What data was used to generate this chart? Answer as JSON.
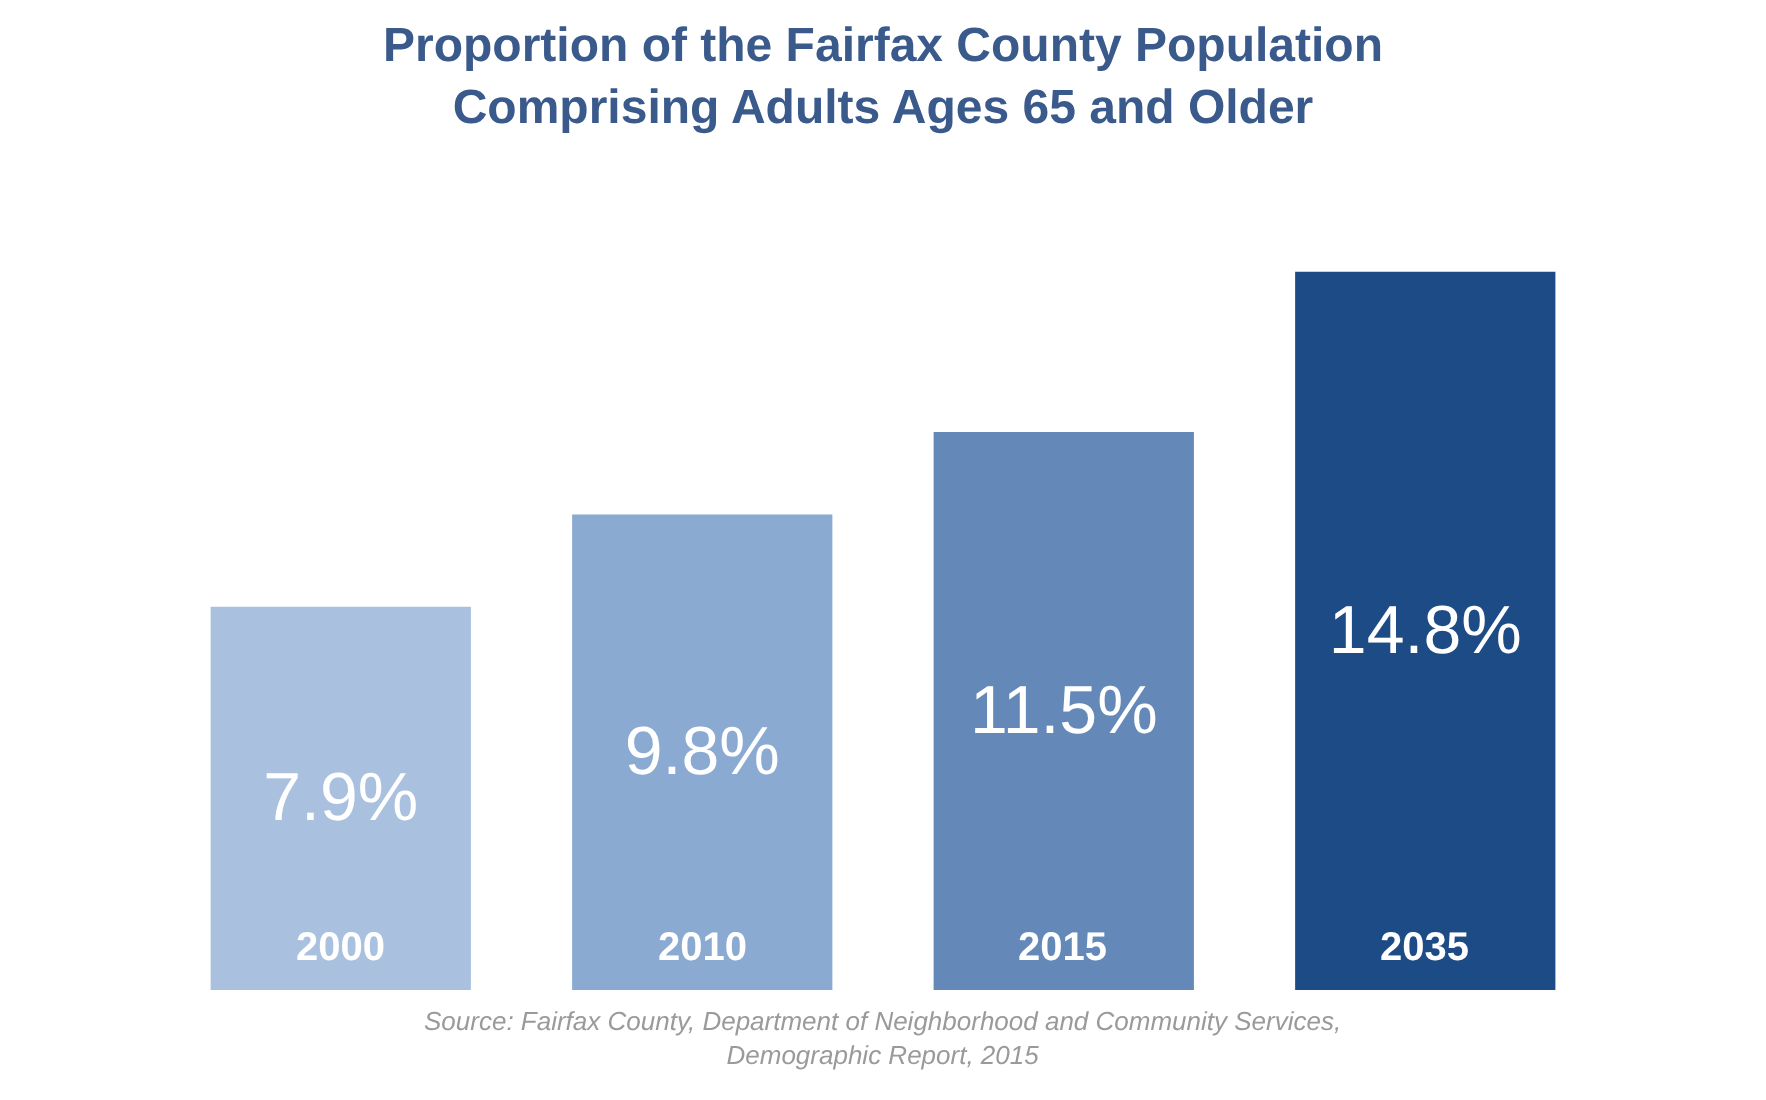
{
  "chart_data": {
    "type": "bar",
    "title": "Proportion of the Fairfax County Population\nComprising Adults Ages 65 and Older",
    "categories": [
      "2000",
      "2010",
      "2015",
      "2035"
    ],
    "values": [
      7.9,
      9.8,
      11.5,
      14.8
    ],
    "colors": [
      "#a9c1df",
      "#8aaad2",
      "#6489b8",
      "#1d4b85"
    ],
    "value_labels": [
      "7.9%",
      "9.8%",
      "11.5%",
      "14.8%"
    ],
    "annotations": [
      "Source: Fairfax County, Department of Neighborhood and Community Services,\nDemographic Report, 2015"
    ],
    "legend": false
  }
}
